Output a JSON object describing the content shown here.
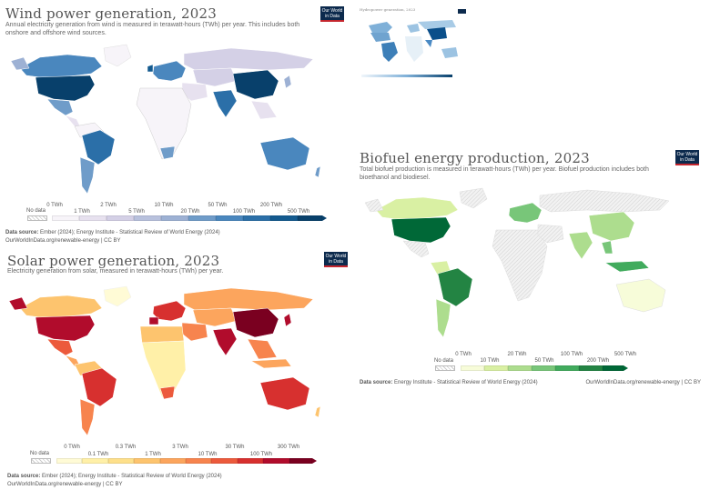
{
  "wind": {
    "title": "Wind power generation, 2023",
    "subtitle": "Annual electricity generation from wind is measured in terawatt-hours (TWh) per year. This includes both onshore and offshore wind sources.",
    "logo": "Our World in Data",
    "no_data": "No data",
    "ticks_top": [
      "0 TWh",
      "2 TWh",
      "10 TWh",
      "50 TWh",
      "200 TWh"
    ],
    "ticks_bottom": [
      "1 TWh",
      "5 TWh",
      "20 TWh",
      "100 TWh",
      "500 TWh"
    ],
    "colors": [
      "#f7f4f9",
      "#e7e1ef",
      "#d4d0e6",
      "#b8c1dd",
      "#9db1d4",
      "#6f9cc9",
      "#4a87be",
      "#2b6fa8",
      "#135a8f",
      "#08406b"
    ],
    "source_label": "Data source:",
    "source": "Ember (2024); Energy Institute - Statistical Review of World Energy (2024)",
    "url": "OurWorldInData.org/renewable-energy | CC BY"
  },
  "solar": {
    "title": "Solar power generation, 2023",
    "subtitle": "Electricity generation from solar, measured in terawatt-hours (TWh) per year.",
    "logo": "Our World in Data",
    "no_data": "No data",
    "ticks_top": [
      "0 TWh",
      "0.3 TWh",
      "3 TWh",
      "30 TWh",
      "300 TWh"
    ],
    "ticks_bottom": [
      "0.1 TWh",
      "1 TWh",
      "10 TWh",
      "100 TWh"
    ],
    "colors": [
      "#fffbd6",
      "#fff0a8",
      "#fee08b",
      "#fdc46e",
      "#fca55d",
      "#f7844e",
      "#ec5a3c",
      "#d7302f",
      "#b10c2c",
      "#7a0020"
    ],
    "source_label": "Data source:",
    "source": "Ember (2024); Energy Institute - Statistical Review of World Energy (2024)",
    "url": "OurWorldInData.org/renewable-energy | CC BY"
  },
  "biofuel": {
    "title": "Biofuel energy production, 2023",
    "subtitle": "Total biofuel production is measured in terawatt-hours (TWh) per year. Biofuel production includes both bioethanol and biodiesel.",
    "logo": "Our World in Data",
    "no_data": "No data",
    "ticks_top": [
      "0 TWh",
      "20 TWh",
      "100 TWh",
      "500 TWh"
    ],
    "ticks_bottom": [
      "10 TWh",
      "50 TWh",
      "200 TWh"
    ],
    "colors": [
      "#f7fcd9",
      "#d9f0a3",
      "#addd8e",
      "#78c679",
      "#41ab5d",
      "#238443",
      "#006837"
    ],
    "source_label": "Data source:",
    "source": "Energy Institute - Statistical Review of World Energy (2024)",
    "url": "OurWorldInData.org/renewable-energy | CC BY"
  },
  "mini": {
    "title": "Hydropower generation, 2023",
    "logo": "OWID"
  }
}
